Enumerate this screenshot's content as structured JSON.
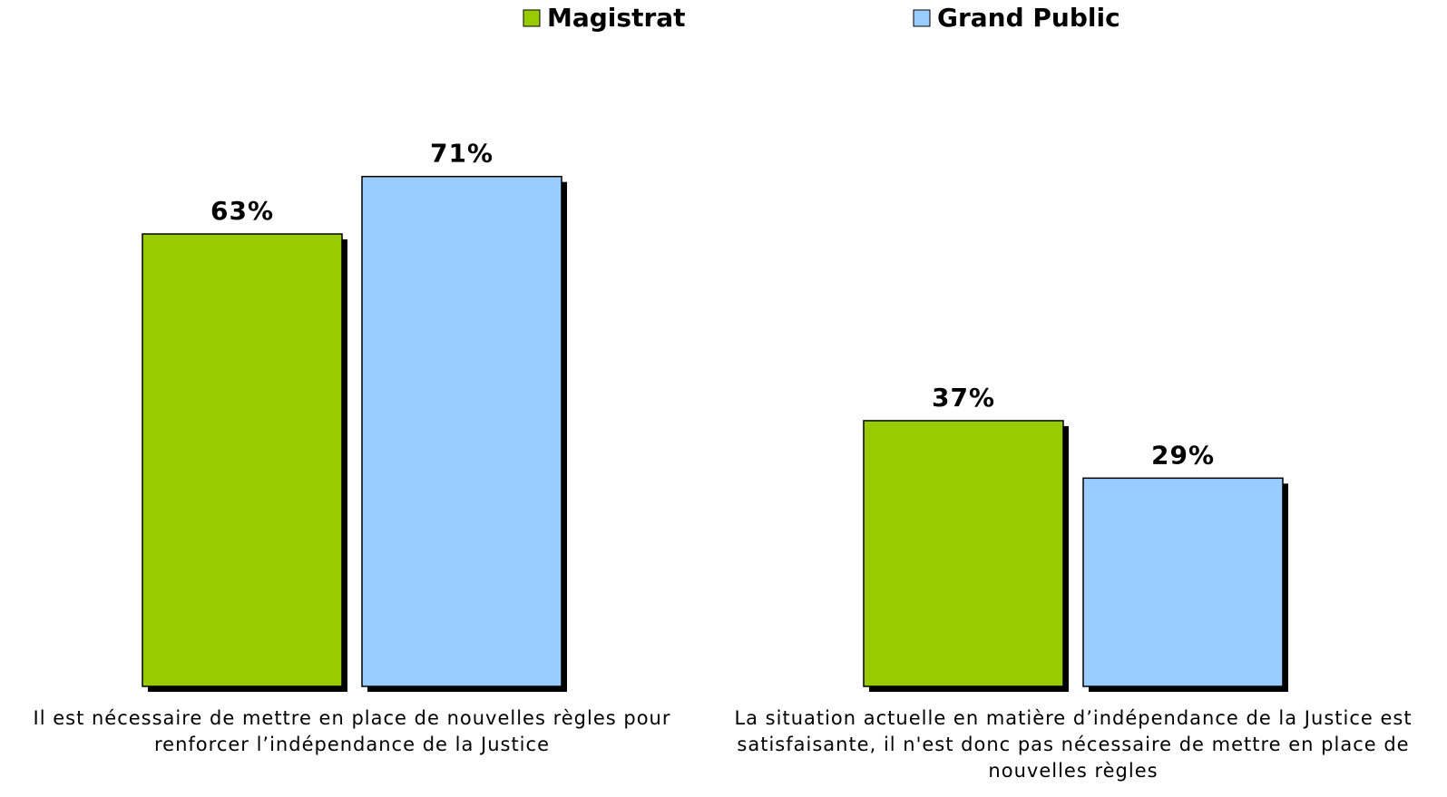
{
  "chart_data": {
    "type": "bar",
    "categories": [
      "Il est nécessaire de mettre en place de nouvelles règles pour renforcer l’indépendance de la Justice",
      "La situation actuelle en matière d’indépendance de la Justice est satisfaisante, il n'est donc pas nécessaire de mettre en place de nouvelles règles"
    ],
    "series": [
      {
        "name": "Magistrat",
        "color": "#99cc00",
        "values": [
          63,
          37
        ],
        "value_labels": [
          "63%",
          "37%"
        ]
      },
      {
        "name": "Grand Public",
        "color": "#99ccff",
        "values": [
          71,
          29
        ],
        "value_labels": [
          "71%",
          "29%"
        ]
      }
    ],
    "legend": "top"
  }
}
